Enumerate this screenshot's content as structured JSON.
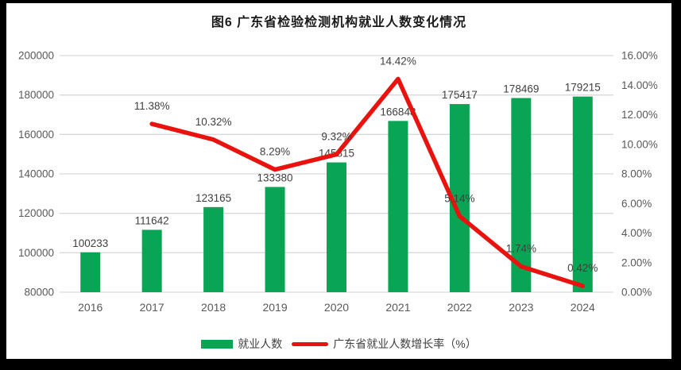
{
  "title": "图6  广东省检验检测机构就业人数变化情况",
  "colors": {
    "bar": "#0AA554",
    "line": "#E8120E",
    "grid": "#D9D9D9",
    "axis_text": "#595959",
    "data_label": "#404040",
    "title_text": "#1A1A1A",
    "frame": "#000000",
    "background": "#FFFFFF"
  },
  "chart_data": {
    "type": "bar+line combo",
    "title": "图6  广东省检验检测机构就业人数变化情况",
    "categories": [
      "2016",
      "2017",
      "2018",
      "2019",
      "2020",
      "2021",
      "2022",
      "2023",
      "2024"
    ],
    "series": [
      {
        "name": "就业人数",
        "type": "bar",
        "axis": "left",
        "values": [
          100233,
          111642,
          123165,
          133380,
          145815,
          166848,
          175417,
          178469,
          179215
        ],
        "labels": [
          "100233",
          "111642",
          "123165",
          "133380",
          "145815",
          "166848",
          "175417",
          "178469",
          "179215"
        ]
      },
      {
        "name": "广东省就业人数增长率（%）",
        "type": "line",
        "axis": "right",
        "values": [
          null,
          11.38,
          10.32,
          8.29,
          9.32,
          14.42,
          5.14,
          1.74,
          0.42
        ],
        "labels": [
          "",
          "11.38%",
          "10.32%",
          "8.29%",
          "9.32%",
          "14.42%",
          "5.14%",
          "1.74%",
          "0.42%"
        ]
      }
    ],
    "left_axis": {
      "min": 80000,
      "max": 200000,
      "step": 20000,
      "ticks": [
        "200000",
        "180000",
        "160000",
        "140000",
        "120000",
        "100000",
        "80000"
      ]
    },
    "right_axis": {
      "min": 0,
      "max": 16,
      "step": 2,
      "ticks": [
        "16.00%",
        "14.00%",
        "12.00%",
        "10.00%",
        "8.00%",
        "6.00%",
        "4.00%",
        "2.00%",
        "0.00%"
      ]
    },
    "grid": true,
    "legend_position": "bottom"
  },
  "legend": {
    "bar_label": "就业人数",
    "line_label": "广东省就业人数增长率（%）"
  }
}
